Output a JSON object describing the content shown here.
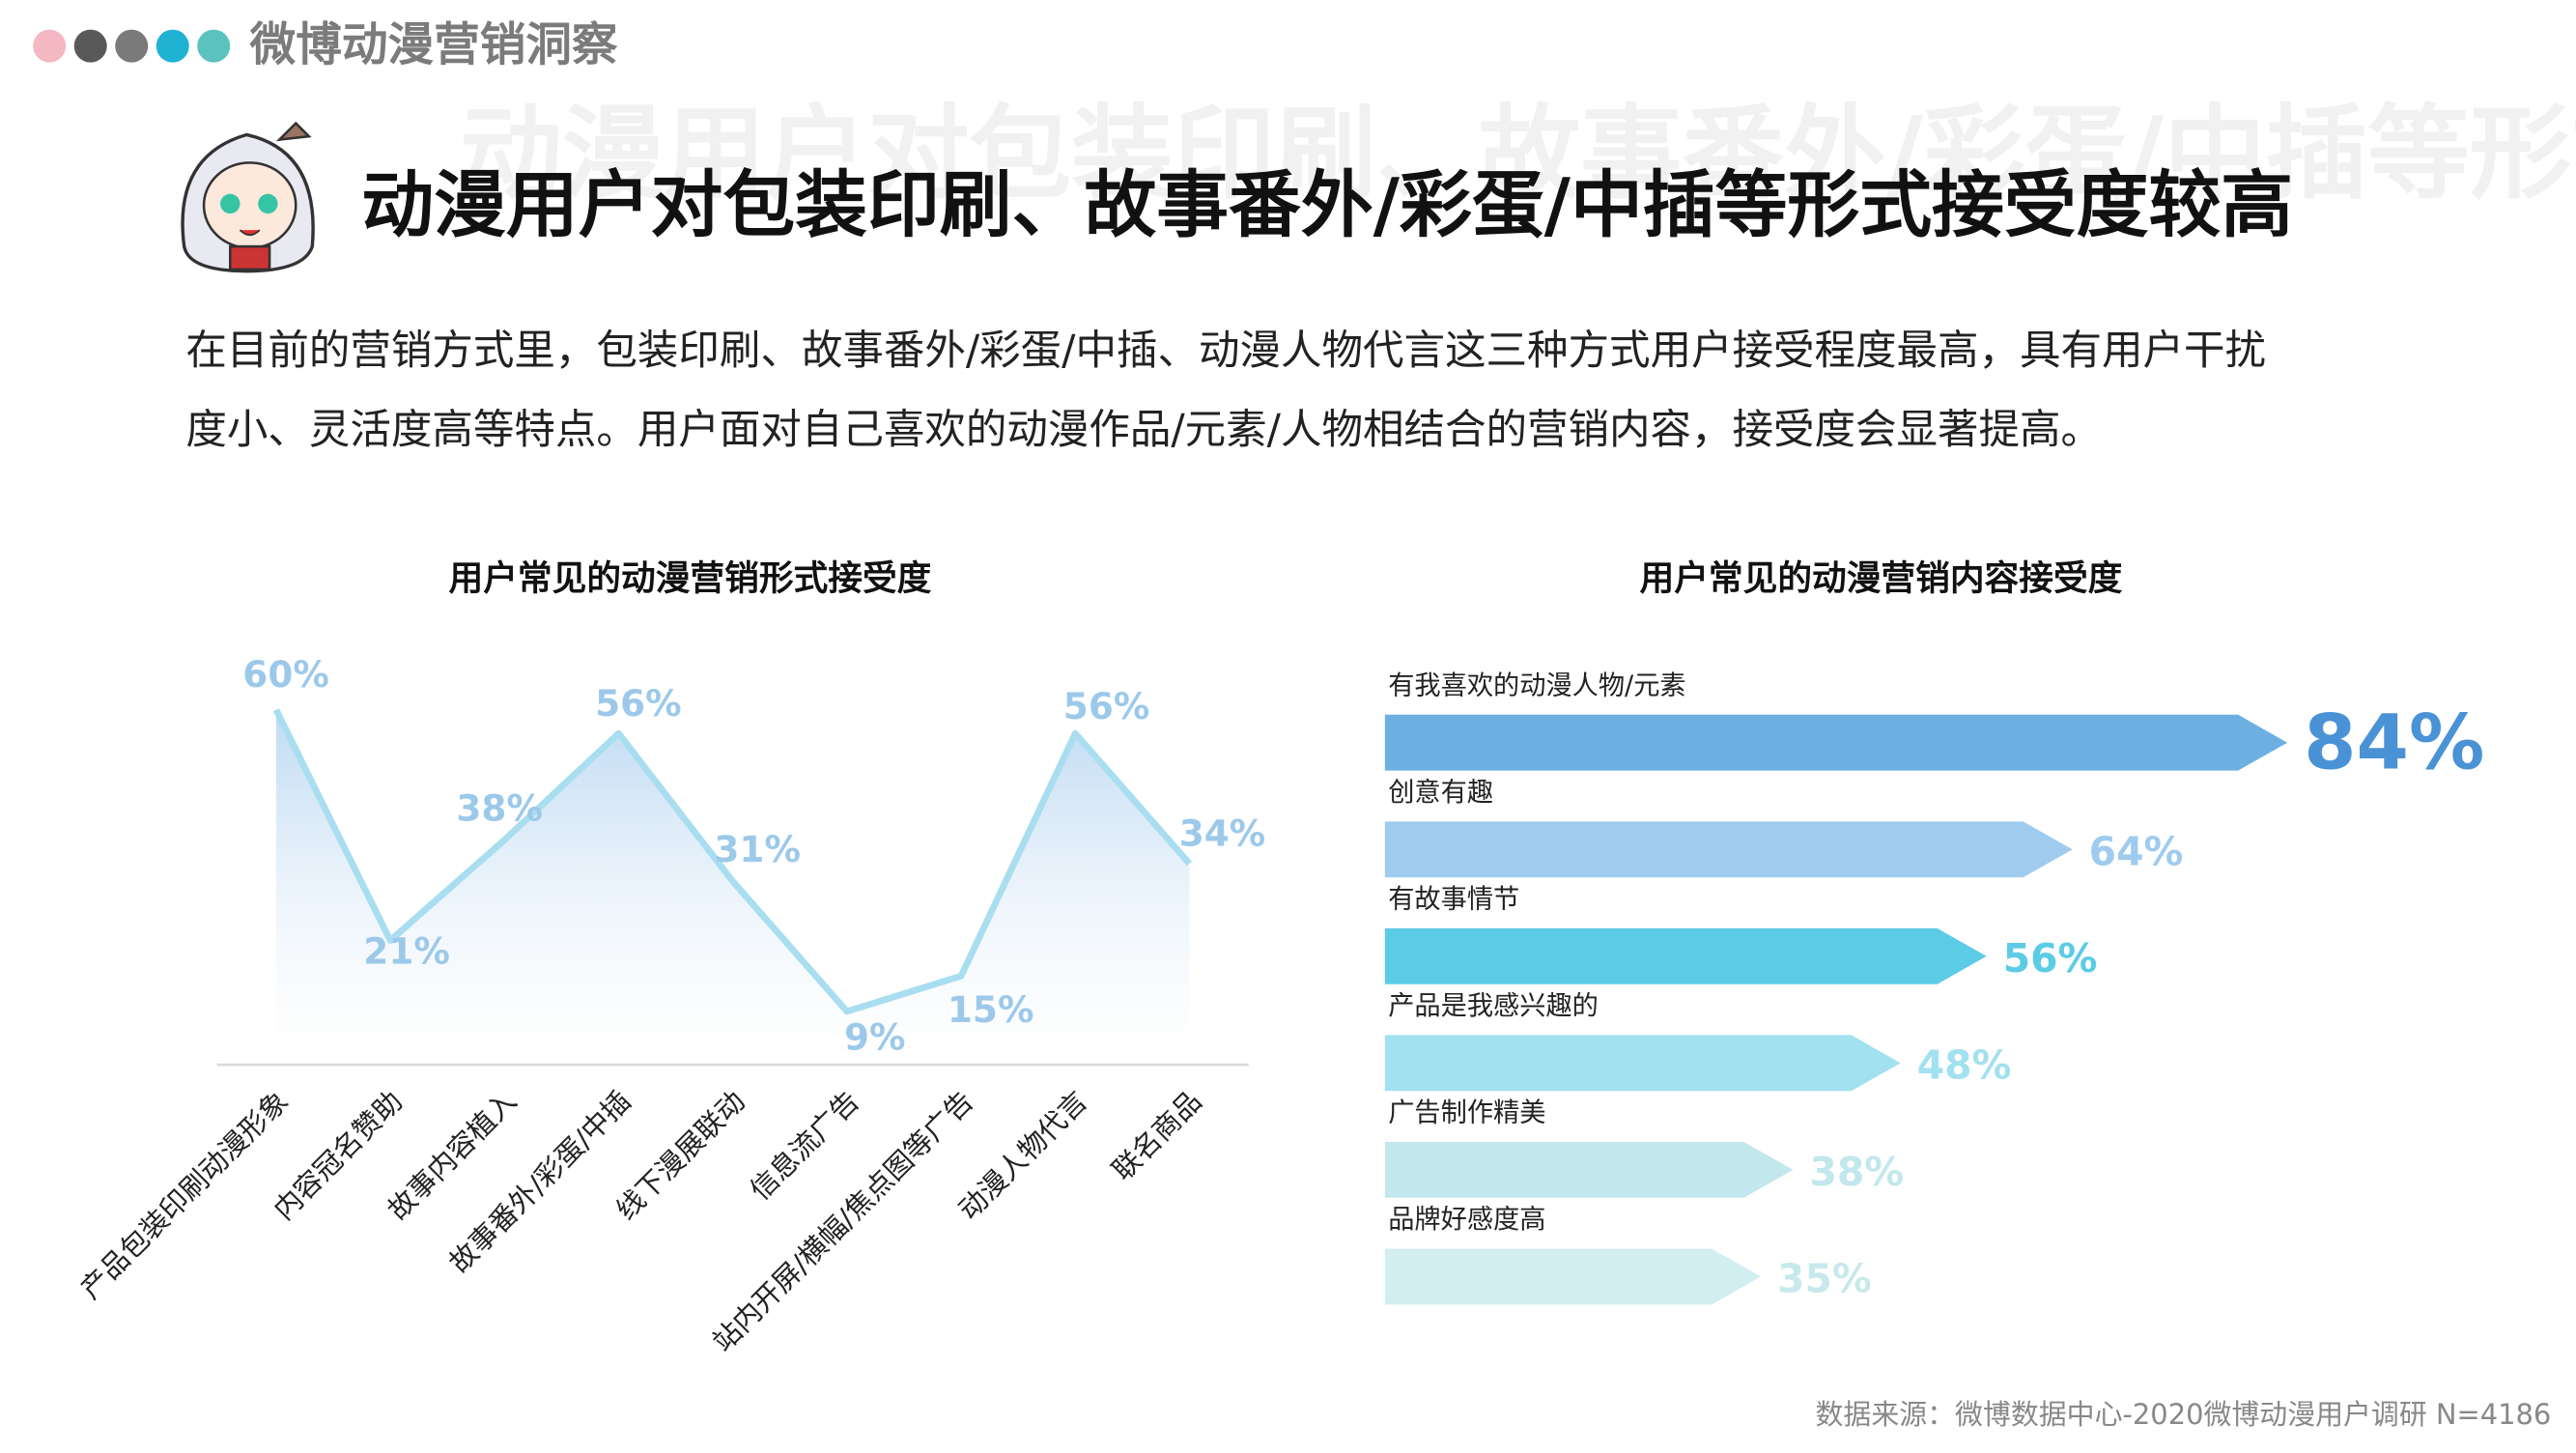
{
  "header": {
    "brand": "微博动漫营销洞察",
    "title": "动漫用户对包装印刷、故事番外/彩蛋/中插等形式接受度较高",
    "paragraph": [
      "在目前的营销方式里，包装印刷、故事番外/彩蛋/中插、动漫人物代言这三种方式用户接受程度最高，具有用户干扰",
      "度小、灵活度高等特点。用户面对自己喜欢的动漫作品/元素/人物相结合的营销内容，接受度会显著提高。"
    ],
    "source": "数据来源：微博数据中心-2020微博动漫用户调研  N=4186"
  },
  "chart_data": [
    {
      "type": "area",
      "title": "用户常见的动漫营销形式接受度",
      "categories": [
        "产品包装印刷动漫形象",
        "内容冠名赞助",
        "故事内容植入",
        "故事番外/彩蛋/中插",
        "线下漫展联动",
        "信息流广告",
        "站内开屏/横幅/焦点图等广告",
        "动漫人物代言",
        "联名商品"
      ],
      "values": [
        60,
        21,
        38,
        56,
        31,
        9,
        15,
        56,
        34
      ],
      "value_labels": [
        "60%",
        "21%",
        "38%",
        "56%",
        "31%",
        "9%",
        "15%",
        "56%",
        "34%"
      ],
      "color": "#a8def0",
      "label_color": "#9cc9ea",
      "ylim": [
        0,
        60
      ]
    },
    {
      "type": "hbar",
      "title": "用户常见的动漫营销内容接受度",
      "categories": [
        "有我喜欢的动漫人物/元素",
        "创意有趣",
        "有故事情节",
        "产品是我感兴趣的",
        "广告制作精美",
        "品牌好感度高"
      ],
      "values": [
        84,
        64,
        56,
        48,
        38,
        35
      ],
      "value_labels": [
        "84%",
        "64%",
        "56%",
        "48%",
        "38%",
        "35%"
      ],
      "colors": [
        "#6cafe1",
        "#9fcbee",
        "#5ccbe5",
        "#a2e1ef",
        "#c2e7ec",
        "#d2eef0"
      ],
      "label_colors": [
        "#4a92d6",
        "#9fcbee",
        "#5ccbe5",
        "#a2e1ef",
        "#c2e7ec",
        "#c8e9ec"
      ],
      "xlim": [
        0,
        100
      ]
    }
  ]
}
